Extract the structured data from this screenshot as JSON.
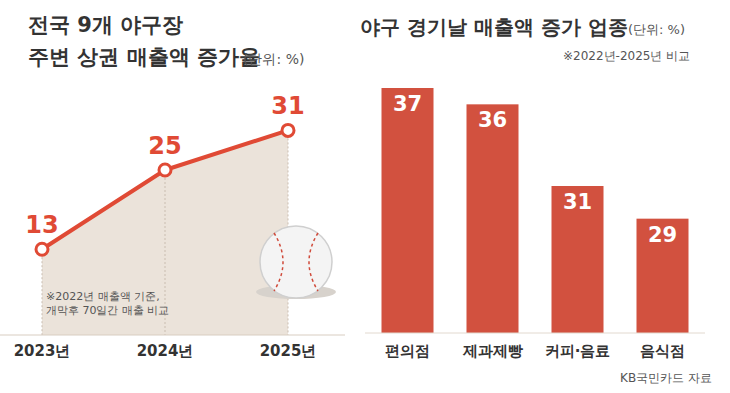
{
  "chart_data": [
    {
      "type": "line",
      "title": "전국 9개 야구장\n주변 상권 매출액 증가율",
      "subtitle": "(단위: %)",
      "annotations": [
        "※2022년 매출액 기준,\n개막후 70일간 매출 비교"
      ],
      "categories": [
        "2023년",
        "2024년",
        "2025년"
      ],
      "values": [
        13,
        25,
        31
      ],
      "color": "#e04a35",
      "ylim": [
        0,
        35
      ],
      "data_labels": true,
      "tick_labels": "x",
      "marker": "circle"
    },
    {
      "type": "bar",
      "title": "야구 경기날 매출액 증가 업종",
      "subtitle": "(단위: %)",
      "annotations": [
        "※2022년-2025년 비교",
        "KB국민카드 자료"
      ],
      "categories": [
        "편의점",
        "제과제빵",
        "커피·음료",
        "음식점"
      ],
      "values": [
        37,
        36,
        31,
        29
      ],
      "color": "#d2513f",
      "ylim": [
        22,
        40
      ],
      "data_labels": true,
      "tick_labels": "x"
    }
  ]
}
